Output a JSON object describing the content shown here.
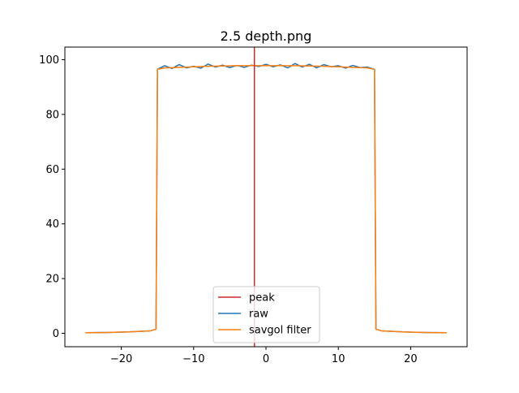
{
  "chart_data": {
    "type": "line",
    "title": "2.5 depth.png",
    "xlabel": "",
    "ylabel": "",
    "xlim": [
      -27.8,
      27.8
    ],
    "ylim": [
      -4.9,
      104.6
    ],
    "xticks": [
      -20,
      -10,
      0,
      10,
      20
    ],
    "xtick_labels": [
      "−20",
      "−10",
      "0",
      "10",
      "20"
    ],
    "yticks": [
      0,
      20,
      40,
      60,
      80,
      100
    ],
    "ytick_labels": [
      "0",
      "20",
      "40",
      "60",
      "80",
      "100"
    ],
    "grid": false,
    "legend_position": "lower-center",
    "peak_x": -1.6,
    "series": [
      {
        "name": "raw",
        "color": "#1f77b4",
        "x": [
          -25,
          -22,
          -19,
          -16,
          -15.2,
          -15,
          -14,
          -13,
          -12,
          -11,
          -10,
          -9,
          -8,
          -7,
          -6,
          -5,
          -4,
          -3,
          -2,
          -1,
          0,
          1,
          2,
          3,
          4,
          5,
          6,
          7,
          8,
          9,
          10,
          11,
          12,
          13,
          14,
          15,
          15.2,
          16,
          19,
          22,
          25
        ],
        "y": [
          0.2,
          0.3,
          0.5,
          0.9,
          1.5,
          96.5,
          97.8,
          96.8,
          98.2,
          97.0,
          97.6,
          96.9,
          98.4,
          97.3,
          98.0,
          97.1,
          97.9,
          97.2,
          98.0,
          97.5,
          98.3,
          97.4,
          98.1,
          97.0,
          98.6,
          97.3,
          98.3,
          97.0,
          98.2,
          97.4,
          97.8,
          96.9,
          97.9,
          97.1,
          97.3,
          96.5,
          1.5,
          0.9,
          0.5,
          0.3,
          0.2
        ]
      },
      {
        "name": "savgol filter",
        "color": "#ff7f0e",
        "x": [
          -25,
          -22,
          -19,
          -16,
          -15.2,
          -15,
          -14,
          -12,
          -10,
          -8,
          -6,
          -4,
          -2,
          0,
          2,
          4,
          6,
          8,
          10,
          12,
          14,
          15,
          15.2,
          16,
          19,
          22,
          25
        ],
        "y": [
          0.2,
          0.3,
          0.5,
          0.9,
          1.5,
          96.5,
          97.0,
          97.2,
          97.4,
          97.6,
          97.7,
          97.8,
          97.8,
          97.8,
          97.8,
          97.8,
          97.7,
          97.6,
          97.4,
          97.2,
          97.0,
          96.5,
          1.5,
          0.9,
          0.5,
          0.3,
          0.2
        ]
      }
    ],
    "legend": [
      {
        "label": "peak",
        "color": "#d62728"
      },
      {
        "label": "raw",
        "color": "#1f77b4"
      },
      {
        "label": "savgol filter",
        "color": "#ff7f0e"
      }
    ]
  }
}
